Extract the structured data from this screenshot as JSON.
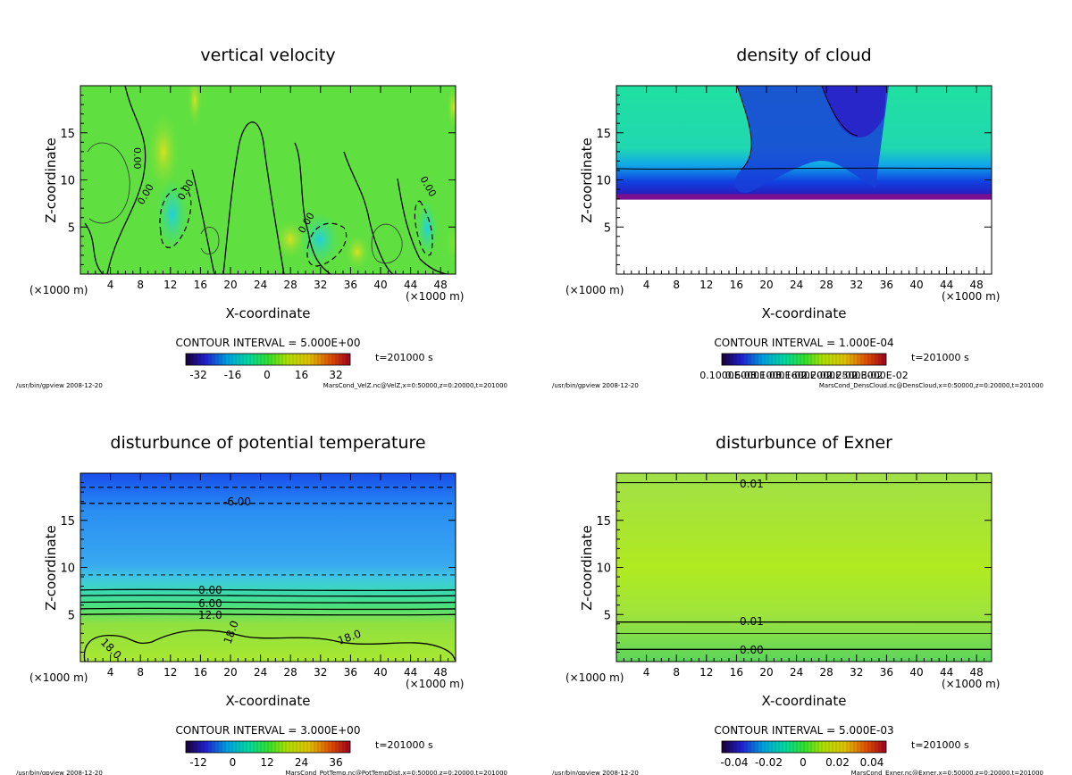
{
  "chart_data": [
    {
      "type": "heatmap",
      "title": "vertical velocity",
      "xlabel": "X-coordinate",
      "ylabel": "Z-coordinate",
      "x_unit": "(×1000 m)",
      "x_ticks": [
        4,
        8,
        12,
        16,
        20,
        24,
        28,
        32,
        36,
        40,
        44,
        48
      ],
      "y_ticks": [
        5,
        10,
        15
      ],
      "xlim": [
        0,
        50
      ],
      "ylim": [
        0,
        20
      ],
      "contour_interval": "CONTOUR INTERVAL = 5.000E+00",
      "time": "t=201000 s",
      "colorbar_ticks": [
        "-32",
        "-16",
        "0",
        "16",
        "32"
      ],
      "footer_left": "/usr/bin/gpview  2008-12-20",
      "footer_right": "MarsCond_VelZ.nc@VelZ,x=0:50000,z=0:20000,t=201000",
      "contour_labels": [
        "0.00",
        "0.00",
        "0.00",
        "0.00",
        "0.00"
      ],
      "scheme": "velocity"
    },
    {
      "type": "heatmap",
      "title": "density of cloud",
      "xlabel": "X-coordinate",
      "ylabel": "Z-coordinate",
      "x_unit": "(×1000 m)",
      "x_ticks": [
        4,
        8,
        12,
        16,
        20,
        24,
        28,
        32,
        36,
        40,
        44,
        48
      ],
      "y_ticks": [
        5,
        10,
        15
      ],
      "xlim": [
        0,
        50
      ],
      "ylim": [
        0,
        20
      ],
      "contour_interval": "CONTOUR INTERVAL = 1.000E-04",
      "time": "t=201000 s",
      "colorbar_ticks": [
        "0.1000E-03",
        "0.6000E-03",
        "0.1000E-02",
        "0.1600E-02",
        "0.2000E-02",
        "0.2500E-02",
        "0.3000E-02"
      ],
      "footer_left": "/usr/bin/gpview  2008-12-20",
      "footer_right": "MarsCond_DensCloud.nc@DensCloud,x=0:50000,z=0:20000,t=201000",
      "contour_labels": [],
      "scheme": "cloud"
    },
    {
      "type": "heatmap",
      "title": "disturbunce of potential temperature",
      "xlabel": "X-coordinate",
      "ylabel": "Z-coordinate",
      "x_unit": "(×1000 m)",
      "x_ticks": [
        4,
        8,
        12,
        16,
        20,
        24,
        28,
        32,
        36,
        40,
        44,
        48
      ],
      "y_ticks": [
        5,
        10,
        15
      ],
      "xlim": [
        0,
        50
      ],
      "ylim": [
        0,
        20
      ],
      "contour_interval": "CONTOUR INTERVAL = 3.000E+00",
      "time": "t=201000 s",
      "colorbar_ticks": [
        "-12",
        "0",
        "12",
        "24",
        "36"
      ],
      "footer_left": "/usr/bin/gpview  2008-12-20",
      "footer_right": "MarsCond_PotTemp.nc@PotTempDist,x=0:50000,z=0:20000,t=201000",
      "contour_labels": [
        "-6.00",
        "0.00",
        "6.00",
        "12.0",
        "18.0",
        "18.0",
        "18.0"
      ],
      "scheme": "temperature"
    },
    {
      "type": "heatmap",
      "title": "disturbunce of Exner",
      "xlabel": "X-coordinate",
      "ylabel": "Z-coordinate",
      "x_unit": "(×1000 m)",
      "x_ticks": [
        4,
        8,
        12,
        16,
        20,
        24,
        28,
        32,
        36,
        40,
        44,
        48
      ],
      "y_ticks": [
        5,
        10,
        15
      ],
      "xlim": [
        0,
        50
      ],
      "ylim": [
        0,
        20
      ],
      "contour_interval": "CONTOUR INTERVAL = 5.000E-03",
      "time": "t=201000 s",
      "colorbar_ticks": [
        "-0.04",
        "-0.02",
        "0",
        "0.02",
        "0.04"
      ],
      "footer_left": "/usr/bin/gpview  2008-12-20",
      "footer_right": "MarsCond_Exner.nc@Exner,x=0:50000,z=0:20000,t=201000",
      "contour_labels": [
        "0.01",
        "0.01",
        "0.00"
      ],
      "scheme": "exner"
    }
  ]
}
